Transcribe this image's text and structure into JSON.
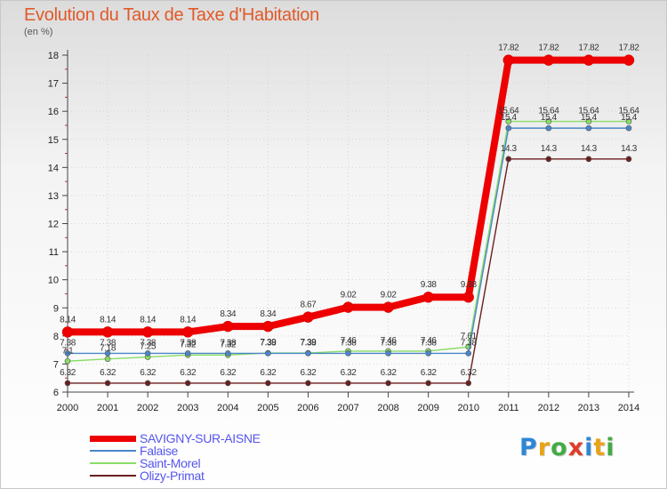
{
  "chart_data": {
    "type": "line",
    "title": "Evolution du Taux de Taxe d'Habitation",
    "ylabel": "(en %)",
    "xlabel": "",
    "ylim": [
      6,
      18
    ],
    "yticks": [
      "6",
      "7",
      "8",
      "9",
      "10",
      "11",
      "12",
      "13",
      "14",
      "15",
      "16",
      "17",
      "18"
    ],
    "x": [
      "2000",
      "2001",
      "2002",
      "2003",
      "2004",
      "2005",
      "2006",
      "2007",
      "2008",
      "2009",
      "2010",
      "2011",
      "2012",
      "2013",
      "2014"
    ],
    "series": [
      {
        "name": "Olizy-Primat",
        "color": "#6b1e1e",
        "values": [
          6.32,
          6.32,
          6.32,
          6.32,
          6.32,
          6.32,
          6.32,
          6.32,
          6.32,
          6.32,
          6.32,
          14.3,
          14.3,
          14.3,
          14.3
        ],
        "labels": [
          "6.32",
          "6.32",
          "6.32",
          "6.32",
          "6.32",
          "6.32",
          "6.32",
          "6.32",
          "6.32",
          "6.32",
          "6.32",
          "14.3",
          "14.3",
          "14.3",
          "14.3"
        ]
      },
      {
        "name": "Saint-Morel",
        "color": "#88dd66",
        "values": [
          7.1,
          7.18,
          7.25,
          7.32,
          7.32,
          7.39,
          7.39,
          7.46,
          7.46,
          7.46,
          7.61,
          15.64,
          15.64,
          15.64,
          15.64
        ],
        "labels": [
          "7.1",
          "7.18",
          "7.25",
          "7.32",
          "7.32",
          "7.39",
          "7.39",
          "7.46",
          "7.46",
          "7.46",
          "7.61",
          "15.64",
          "15.64",
          "15.64",
          "15.64"
        ]
      },
      {
        "name": "Falaise",
        "color": "#4a86c8",
        "values": [
          7.38,
          7.38,
          7.38,
          7.38,
          7.38,
          7.38,
          7.38,
          7.38,
          7.38,
          7.38,
          7.38,
          15.4,
          15.4,
          15.4,
          15.4
        ],
        "labels": [
          "7.38",
          "7.38",
          "7.38",
          "7.38",
          "7.38",
          "7.38",
          "7.38",
          "7.38",
          "7.38",
          "7.38",
          "7.38",
          "15.4",
          "15.4",
          "15.4",
          "15.4"
        ]
      },
      {
        "name": "SAVIGNY-SUR-AISNE",
        "color": "#ee0000",
        "values": [
          8.14,
          8.14,
          8.14,
          8.14,
          8.34,
          8.34,
          8.67,
          9.02,
          9.02,
          9.38,
          9.38,
          17.82,
          17.82,
          17.82,
          17.82
        ],
        "labels": [
          "8.14",
          "8.14",
          "8.14",
          "8.14",
          "8.34",
          "8.34",
          "8.67",
          "9.02",
          "9.02",
          "9.38",
          "9.38",
          "17.82",
          "17.82",
          "17.82",
          "17.82"
        ]
      }
    ],
    "legend": [
      "SAVIGNY-SUR-AISNE",
      "Falaise",
      "Saint-Morel",
      "Olizy-Primat"
    ],
    "legend_position": "bottom-left",
    "grid": true
  },
  "logo": {
    "letters": [
      "P",
      "r",
      "o",
      "x",
      "i",
      "t",
      "i"
    ],
    "colors": [
      "#2e86d6",
      "#e8a317",
      "#44aa44",
      "#e03c2c",
      "#2e86d6",
      "#e8a317",
      "#44aa44"
    ]
  }
}
